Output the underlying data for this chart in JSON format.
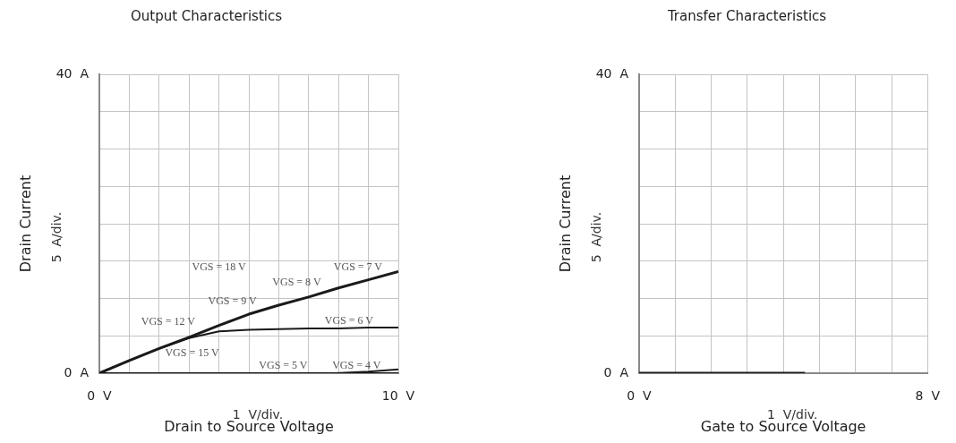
{
  "chart_data": [
    {
      "type": "line",
      "title": "Output Characteristics",
      "xlabel": "Drain to Source Voltage",
      "ylabel": "Drain Current",
      "xlim": [
        0,
        10
      ],
      "xticks": [
        {
          "value": 0,
          "label": "0  V"
        },
        {
          "value": 1,
          "label": null
        },
        {
          "value": 2,
          "label": null
        },
        {
          "value": 3,
          "label": null
        },
        {
          "value": 4,
          "label": null
        },
        {
          "value": 5,
          "label": null
        },
        {
          "value": 6,
          "label": null
        },
        {
          "value": 7,
          "label": null
        },
        {
          "value": 8,
          "label": null
        },
        {
          "value": 9,
          "label": null
        },
        {
          "value": 10,
          "label": "10  V"
        }
      ],
      "ylim": [
        0,
        40
      ],
      "yticks": [
        {
          "value": 0,
          "label": "0  A"
        },
        {
          "value": 5,
          "label": null
        },
        {
          "value": 10,
          "label": null
        },
        {
          "value": 15,
          "label": null
        },
        {
          "value": 20,
          "label": null
        },
        {
          "value": 25,
          "label": null
        },
        {
          "value": 30,
          "label": null
        },
        {
          "value": 35,
          "label": null
        },
        {
          "value": 40,
          "label": "40  A"
        }
      ],
      "grid": true,
      "marker": "none",
      "legend": false,
      "series": [
        {
          "color": "#1a1a1a",
          "x": [
            0,
            1,
            2,
            3,
            4,
            5,
            6,
            7,
            8,
            9,
            10
          ],
          "values": [
            0,
            1.7,
            3.3,
            4.8,
            6.4,
            7.9,
            9.1,
            10.2,
            11.4,
            12.5,
            13.6
          ]
        },
        {
          "color": "#1a1a1a",
          "x": [
            0,
            1,
            2,
            3,
            4,
            5,
            6,
            7,
            8,
            9,
            10
          ],
          "values": [
            0,
            1.7,
            3.3,
            4.7,
            5.6,
            5.8,
            5.9,
            6.0,
            6.0,
            6.1,
            6.1
          ]
        },
        {
          "color": "#1a1a1a",
          "x": [
            0,
            10
          ],
          "values": [
            0,
            0
          ]
        },
        {
          "color": "#1a1a1a",
          "x": [
            0,
            7.9,
            9,
            10
          ],
          "values": [
            0,
            0,
            0.2,
            0.5
          ]
        }
      ],
      "annotations": [
        "5  A/div.",
        "1  V/div.",
        "VGS = 18 V",
        "VGS = 8 V",
        "VGS = 7 V",
        "VGS = 9 V",
        "VGS = 12 V",
        "VGS = 15 V",
        "VGS = 6 V",
        "VGS = 5 V",
        "VGS = 4 V"
      ]
    },
    {
      "type": "line",
      "title": "Transfer Characteristics",
      "xlabel": "Gate to Source Voltage",
      "ylabel": "Drain Current",
      "xlim": [
        0,
        8
      ],
      "xticks": [
        {
          "value": 0,
          "label": "0  V"
        },
        {
          "value": 1,
          "label": null
        },
        {
          "value": 2,
          "label": null
        },
        {
          "value": 3,
          "label": null
        },
        {
          "value": 4,
          "label": null
        },
        {
          "value": 5,
          "label": null
        },
        {
          "value": 6,
          "label": null
        },
        {
          "value": 7,
          "label": null
        },
        {
          "value": 8,
          "label": "8  V"
        }
      ],
      "ylim": [
        0,
        40
      ],
      "yticks": [
        {
          "value": 0,
          "label": "0  A"
        },
        {
          "value": 5,
          "label": null
        },
        {
          "value": 10,
          "label": null
        },
        {
          "value": 15,
          "label": null
        },
        {
          "value": 20,
          "label": null
        },
        {
          "value": 25,
          "label": null
        },
        {
          "value": 30,
          "label": null
        },
        {
          "value": 35,
          "label": null
        },
        {
          "value": 40,
          "label": "40  A"
        }
      ],
      "grid": true,
      "marker": "none",
      "legend": false,
      "series": [
        {
          "color": "#1a1a1a",
          "x": [
            0,
            4.6
          ],
          "values": [
            0,
            0
          ]
        }
      ],
      "annotations": [
        "5  A/div.",
        "1  V/div."
      ]
    }
  ]
}
